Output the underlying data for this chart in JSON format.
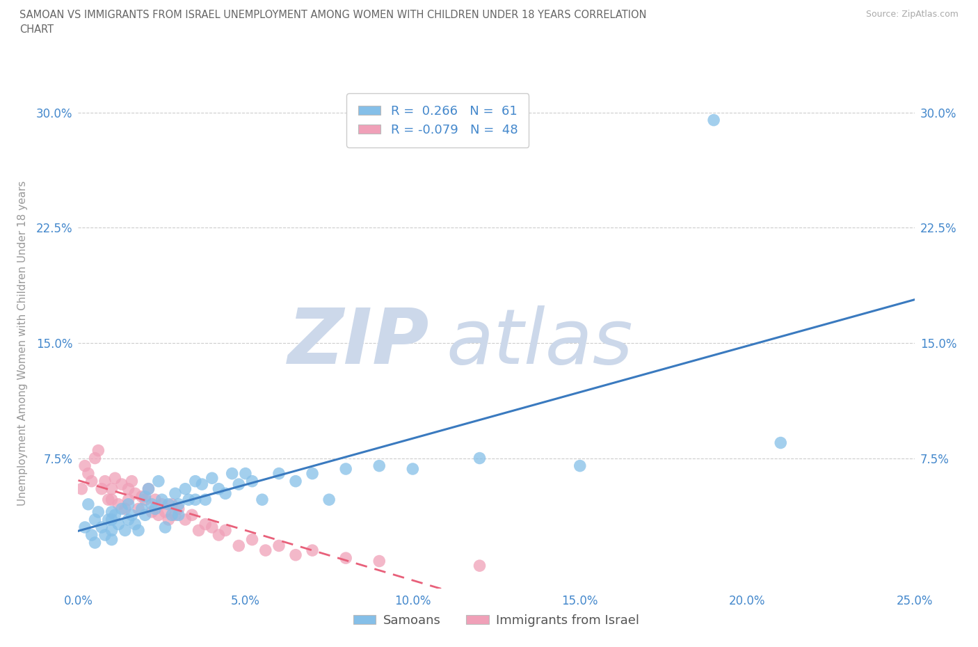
{
  "title_line1": "SAMOAN VS IMMIGRANTS FROM ISRAEL UNEMPLOYMENT AMONG WOMEN WITH CHILDREN UNDER 18 YEARS CORRELATION",
  "title_line2": "CHART",
  "source": "Source: ZipAtlas.com",
  "ylabel": "Unemployment Among Women with Children Under 18 years",
  "xlim": [
    0.0,
    0.25
  ],
  "ylim": [
    -0.01,
    0.31
  ],
  "xticks": [
    0.0,
    0.05,
    0.1,
    0.15,
    0.2,
    0.25
  ],
  "xticklabels": [
    "0.0%",
    "5.0%",
    "10.0%",
    "15.0%",
    "20.0%",
    "25.0%"
  ],
  "yticks": [
    0.075,
    0.15,
    0.225,
    0.3
  ],
  "yticklabels": [
    "7.5%",
    "15.0%",
    "22.5%",
    "30.0%"
  ],
  "samoan_R": 0.266,
  "samoan_N": 61,
  "israel_R": -0.079,
  "israel_N": 48,
  "samoan_color": "#85bfe8",
  "israel_color": "#f0a0b8",
  "samoan_line_color": "#3a7abf",
  "israel_line_color": "#e8607a",
  "background_color": "#ffffff",
  "grid_color": "#cccccc",
  "watermark_color": "#ccd8ea",
  "title_color": "#666666",
  "tick_color": "#4488cc",
  "samoan_x": [
    0.002,
    0.003,
    0.004,
    0.005,
    0.005,
    0.006,
    0.007,
    0.008,
    0.009,
    0.01,
    0.01,
    0.01,
    0.01,
    0.011,
    0.012,
    0.013,
    0.014,
    0.015,
    0.015,
    0.016,
    0.017,
    0.018,
    0.019,
    0.02,
    0.02,
    0.021,
    0.022,
    0.023,
    0.024,
    0.025,
    0.026,
    0.027,
    0.028,
    0.029,
    0.03,
    0.03,
    0.032,
    0.033,
    0.035,
    0.035,
    0.037,
    0.038,
    0.04,
    0.042,
    0.044,
    0.046,
    0.048,
    0.05,
    0.052,
    0.055,
    0.06,
    0.065,
    0.07,
    0.075,
    0.08,
    0.09,
    0.1,
    0.12,
    0.15,
    0.19,
    0.21
  ],
  "samoan_y": [
    0.03,
    0.045,
    0.025,
    0.035,
    0.02,
    0.04,
    0.03,
    0.025,
    0.035,
    0.04,
    0.035,
    0.028,
    0.022,
    0.038,
    0.032,
    0.042,
    0.028,
    0.045,
    0.035,
    0.038,
    0.032,
    0.028,
    0.042,
    0.05,
    0.038,
    0.055,
    0.045,
    0.042,
    0.06,
    0.048,
    0.03,
    0.045,
    0.038,
    0.052,
    0.045,
    0.038,
    0.055,
    0.048,
    0.06,
    0.048,
    0.058,
    0.048,
    0.062,
    0.055,
    0.052,
    0.065,
    0.058,
    0.065,
    0.06,
    0.048,
    0.065,
    0.06,
    0.065,
    0.048,
    0.068,
    0.07,
    0.068,
    0.075,
    0.07,
    0.295,
    0.085
  ],
  "israel_x": [
    0.001,
    0.002,
    0.003,
    0.004,
    0.005,
    0.006,
    0.007,
    0.008,
    0.009,
    0.01,
    0.01,
    0.011,
    0.012,
    0.013,
    0.014,
    0.015,
    0.015,
    0.016,
    0.017,
    0.018,
    0.019,
    0.02,
    0.021,
    0.022,
    0.023,
    0.024,
    0.025,
    0.026,
    0.027,
    0.028,
    0.029,
    0.03,
    0.032,
    0.034,
    0.036,
    0.038,
    0.04,
    0.042,
    0.044,
    0.048,
    0.052,
    0.056,
    0.06,
    0.065,
    0.07,
    0.08,
    0.09,
    0.12
  ],
  "israel_y": [
    0.055,
    0.07,
    0.065,
    0.06,
    0.075,
    0.08,
    0.055,
    0.06,
    0.048,
    0.055,
    0.048,
    0.062,
    0.045,
    0.058,
    0.042,
    0.055,
    0.048,
    0.06,
    0.052,
    0.042,
    0.05,
    0.048,
    0.055,
    0.04,
    0.048,
    0.038,
    0.045,
    0.04,
    0.035,
    0.045,
    0.038,
    0.042,
    0.035,
    0.038,
    0.028,
    0.032,
    0.03,
    0.025,
    0.028,
    0.018,
    0.022,
    0.015,
    0.018,
    0.012,
    0.015,
    0.01,
    0.008,
    0.005
  ]
}
